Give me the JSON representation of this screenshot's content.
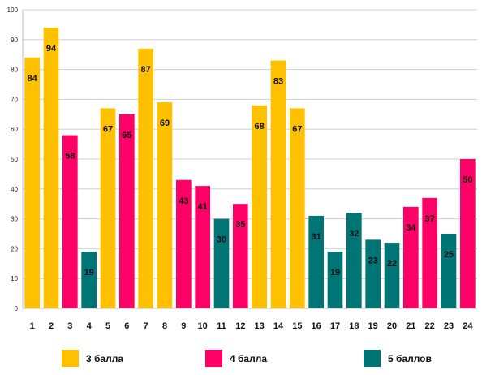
{
  "chart_data": {
    "type": "bar",
    "title": "",
    "xlabel": "",
    "ylabel": "",
    "ylim": [
      0,
      100
    ],
    "yticks": [
      0,
      10,
      20,
      30,
      40,
      50,
      60,
      70,
      80,
      90,
      100
    ],
    "grid": true,
    "legend_position": "bottom",
    "categories": [
      "1",
      "2",
      "3",
      "4",
      "5",
      "6",
      "7",
      "8",
      "9",
      "10",
      "11",
      "12",
      "13",
      "14",
      "15",
      "16",
      "17",
      "18",
      "19",
      "20",
      "21",
      "22",
      "23",
      "24"
    ],
    "values": [
      84,
      94,
      58,
      19,
      67,
      65,
      87,
      69,
      43,
      41,
      30,
      35,
      68,
      83,
      67,
      31,
      19,
      32,
      23,
      22,
      34,
      37,
      25,
      50
    ],
    "series_index": [
      0,
      0,
      1,
      2,
      0,
      1,
      0,
      0,
      1,
      1,
      2,
      1,
      0,
      0,
      0,
      2,
      2,
      2,
      2,
      2,
      1,
      1,
      2,
      1
    ],
    "series": [
      {
        "name": "3 балла",
        "color": "#FFC000"
      },
      {
        "name": "4 балла",
        "color": "#FF0066"
      },
      {
        "name": "5 баллов",
        "color": "#007575"
      }
    ]
  }
}
